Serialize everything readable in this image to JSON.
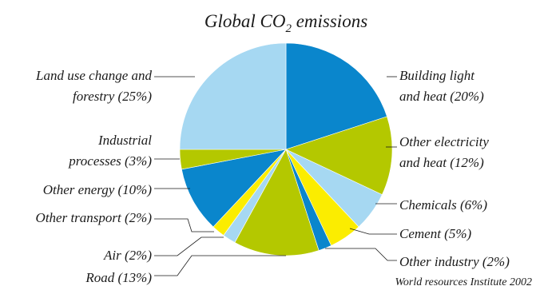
{
  "chart_data": {
    "type": "pie",
    "title_parts": {
      "pre": "Global CO",
      "sub": "2",
      "post": " emissions"
    },
    "source": "World resources Institute 2002",
    "colors": {
      "blue": "#0a86cc",
      "green": "#b4c800",
      "light_blue": "#a6d8f2",
      "yellow": "#fbed00"
    },
    "slices": [
      {
        "id": "building",
        "value": 20,
        "color": "blue",
        "label": [
          "Building light",
          "and heat (20%)"
        ]
      },
      {
        "id": "other-electricity",
        "value": 12,
        "color": "green",
        "label": [
          "Other electricity",
          "and heat (12%)"
        ]
      },
      {
        "id": "chemicals",
        "value": 6,
        "color": "light_blue",
        "label": [
          "Chemicals (6%)"
        ]
      },
      {
        "id": "cement",
        "value": 5,
        "color": "yellow",
        "label": [
          "Cement (5%)"
        ]
      },
      {
        "id": "other-industry",
        "value": 2,
        "color": "blue",
        "label": [
          "Other industry (2%)"
        ]
      },
      {
        "id": "road",
        "value": 13,
        "color": "green",
        "label": [
          "Road (13%)"
        ]
      },
      {
        "id": "air",
        "value": 2,
        "color": "light_blue",
        "label": [
          "Air (2%)"
        ]
      },
      {
        "id": "other-transport",
        "value": 2,
        "color": "yellow",
        "label": [
          "Other transport (2%)"
        ]
      },
      {
        "id": "other-energy",
        "value": 10,
        "color": "blue",
        "label": [
          "Other energy (10%)"
        ]
      },
      {
        "id": "industrial",
        "value": 3,
        "color": "green",
        "label": [
          "Industrial",
          "processes (3%)"
        ]
      },
      {
        "id": "land-use",
        "value": 25,
        "color": "light_blue",
        "label": [
          "Land use change and",
          "forestry (25%)"
        ]
      }
    ]
  }
}
